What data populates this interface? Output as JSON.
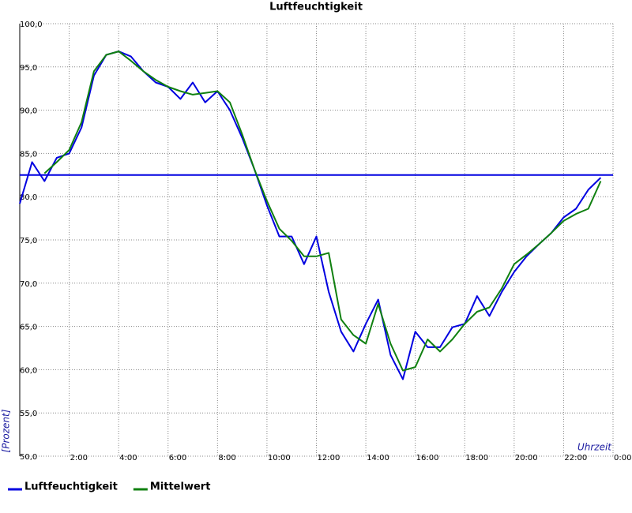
{
  "chart_data": {
    "type": "line",
    "title": "Luftfeuchtigkeit",
    "y_label": "[Prozent]",
    "x_label": "Uhrzeit",
    "x": [
      0,
      0.5,
      1,
      1.5,
      2,
      2.5,
      3,
      3.5,
      4,
      4.5,
      5,
      5.5,
      6,
      6.5,
      7,
      7.5,
      8,
      8.5,
      9,
      9.5,
      10,
      10.5,
      11,
      11.5,
      12,
      12.5,
      13,
      13.5,
      14,
      14.5,
      15,
      15.5,
      16,
      16.5,
      17,
      17.5,
      18,
      18.5,
      19,
      19.5,
      20,
      20.5,
      21,
      21.5,
      22,
      22.5,
      23,
      23.5
    ],
    "series": [
      {
        "name": "Luftfeuchtigkeit",
        "color": "#0000e0",
        "values": [
          79.2,
          84,
          81.8,
          84.5,
          85,
          88,
          94,
          96.4,
          96.8,
          96.2,
          94.5,
          93.2,
          92.7,
          91.3,
          93.2,
          90.9,
          92.2,
          90,
          86.8,
          83.1,
          79,
          75.4,
          75.4,
          72.2,
          75.4,
          69,
          64.4,
          62.1,
          65.3,
          68.1,
          61.7,
          58.9,
          64.4,
          62.6,
          62.6,
          64.9,
          65.3,
          68.5,
          66.2,
          69,
          71.3,
          73.1,
          74.5,
          75.8,
          77.6,
          78.6,
          80.8,
          82.2
        ]
      },
      {
        "name": "Mittelwert",
        "color": "#108010",
        "values": [
          null,
          null,
          82.7,
          84,
          85.4,
          88.6,
          94.5,
          96.4,
          96.8,
          95.7,
          94.5,
          93.5,
          92.7,
          92.2,
          91.8,
          92,
          92.2,
          90.9,
          87.2,
          83.1,
          79.5,
          76.3,
          74.9,
          73.1,
          73.1,
          73.5,
          65.8,
          64,
          63,
          67.6,
          63,
          59.9,
          60.3,
          63.5,
          62.1,
          63.5,
          65.3,
          66.7,
          67.2,
          69.4,
          72.2,
          73.3,
          74.5,
          75.8,
          77.2,
          78,
          78.6,
          81.8
        ]
      }
    ],
    "reference_line": {
      "value": 82.5,
      "color": "#0000e0"
    },
    "xlim": [
      0,
      24
    ],
    "xticks": [
      {
        "value": 2,
        "label": "2:00"
      },
      {
        "value": 4,
        "label": "4:00"
      },
      {
        "value": 6,
        "label": "6:00"
      },
      {
        "value": 8,
        "label": "8:00"
      },
      {
        "value": 10,
        "label": "10:00"
      },
      {
        "value": 12,
        "label": "12:00"
      },
      {
        "value": 14,
        "label": "14:00"
      },
      {
        "value": 16,
        "label": "16:00"
      },
      {
        "value": 18,
        "label": "18:00"
      },
      {
        "value": 20,
        "label": "20:00"
      },
      {
        "value": 22,
        "label": "22:00"
      },
      {
        "value": 24,
        "label": "0:00"
      }
    ],
    "ylim": [
      50,
      100
    ],
    "yticks": [
      {
        "value": 50,
        "label": "50,0"
      },
      {
        "value": 55,
        "label": "55,0"
      },
      {
        "value": 60,
        "label": "60,0"
      },
      {
        "value": 65,
        "label": "65,0"
      },
      {
        "value": 70,
        "label": "70,0"
      },
      {
        "value": 75,
        "label": "75,0"
      },
      {
        "value": 80,
        "label": "80,0"
      },
      {
        "value": 85,
        "label": "85,0"
      },
      {
        "value": 90,
        "label": "90,0"
      },
      {
        "value": 95,
        "label": "95,0"
      },
      {
        "value": 100,
        "label": "100,0"
      }
    ],
    "grid": true
  }
}
